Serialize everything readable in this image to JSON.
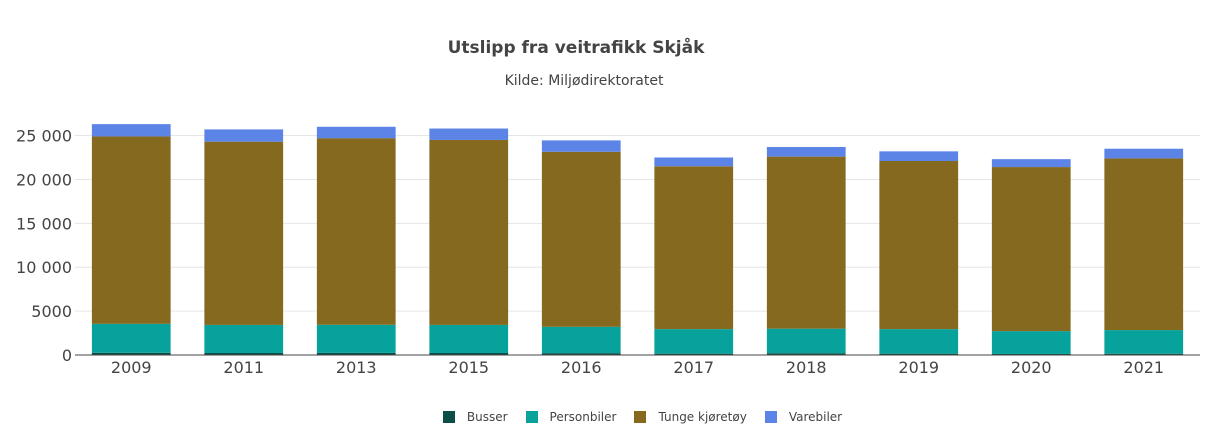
{
  "chart_data": {
    "type": "bar",
    "stacked": true,
    "title": "Utslipp fra veitrafikk Skjåk",
    "subtitle": "Kilde: Miljødirektoratet",
    "xlabel": "",
    "ylabel": "",
    "categories": [
      "2009",
      "2011",
      "2013",
      "2015",
      "2016",
      "2017",
      "2018",
      "2019",
      "2020",
      "2021"
    ],
    "ylim": [
      0,
      27000
    ],
    "yticks": [
      0,
      5000,
      10000,
      15000,
      20000,
      25000
    ],
    "ytick_labels": [
      "0",
      "5000",
      "10 000",
      "15 000",
      "20 000",
      "25 000"
    ],
    "grid": true,
    "legend_position": "bottom",
    "series": [
      {
        "name": "Busser",
        "color": "#0b4d47",
        "values": [
          250,
          230,
          240,
          230,
          210,
          150,
          200,
          150,
          120,
          140
        ]
      },
      {
        "name": "Personbiler",
        "color": "#07a29c",
        "values": [
          3300,
          3200,
          3200,
          3200,
          3000,
          2800,
          2800,
          2800,
          2600,
          2700
        ]
      },
      {
        "name": "Tunge kjøretøy",
        "color": "#85691e",
        "values": [
          21350,
          20870,
          21260,
          21070,
          19940,
          18550,
          19600,
          19150,
          18690,
          19560
        ]
      },
      {
        "name": "Varebiler",
        "color": "#5b84e6",
        "values": [
          1400,
          1400,
          1300,
          1300,
          1300,
          1000,
          1100,
          1100,
          900,
          1100
        ]
      }
    ]
  }
}
